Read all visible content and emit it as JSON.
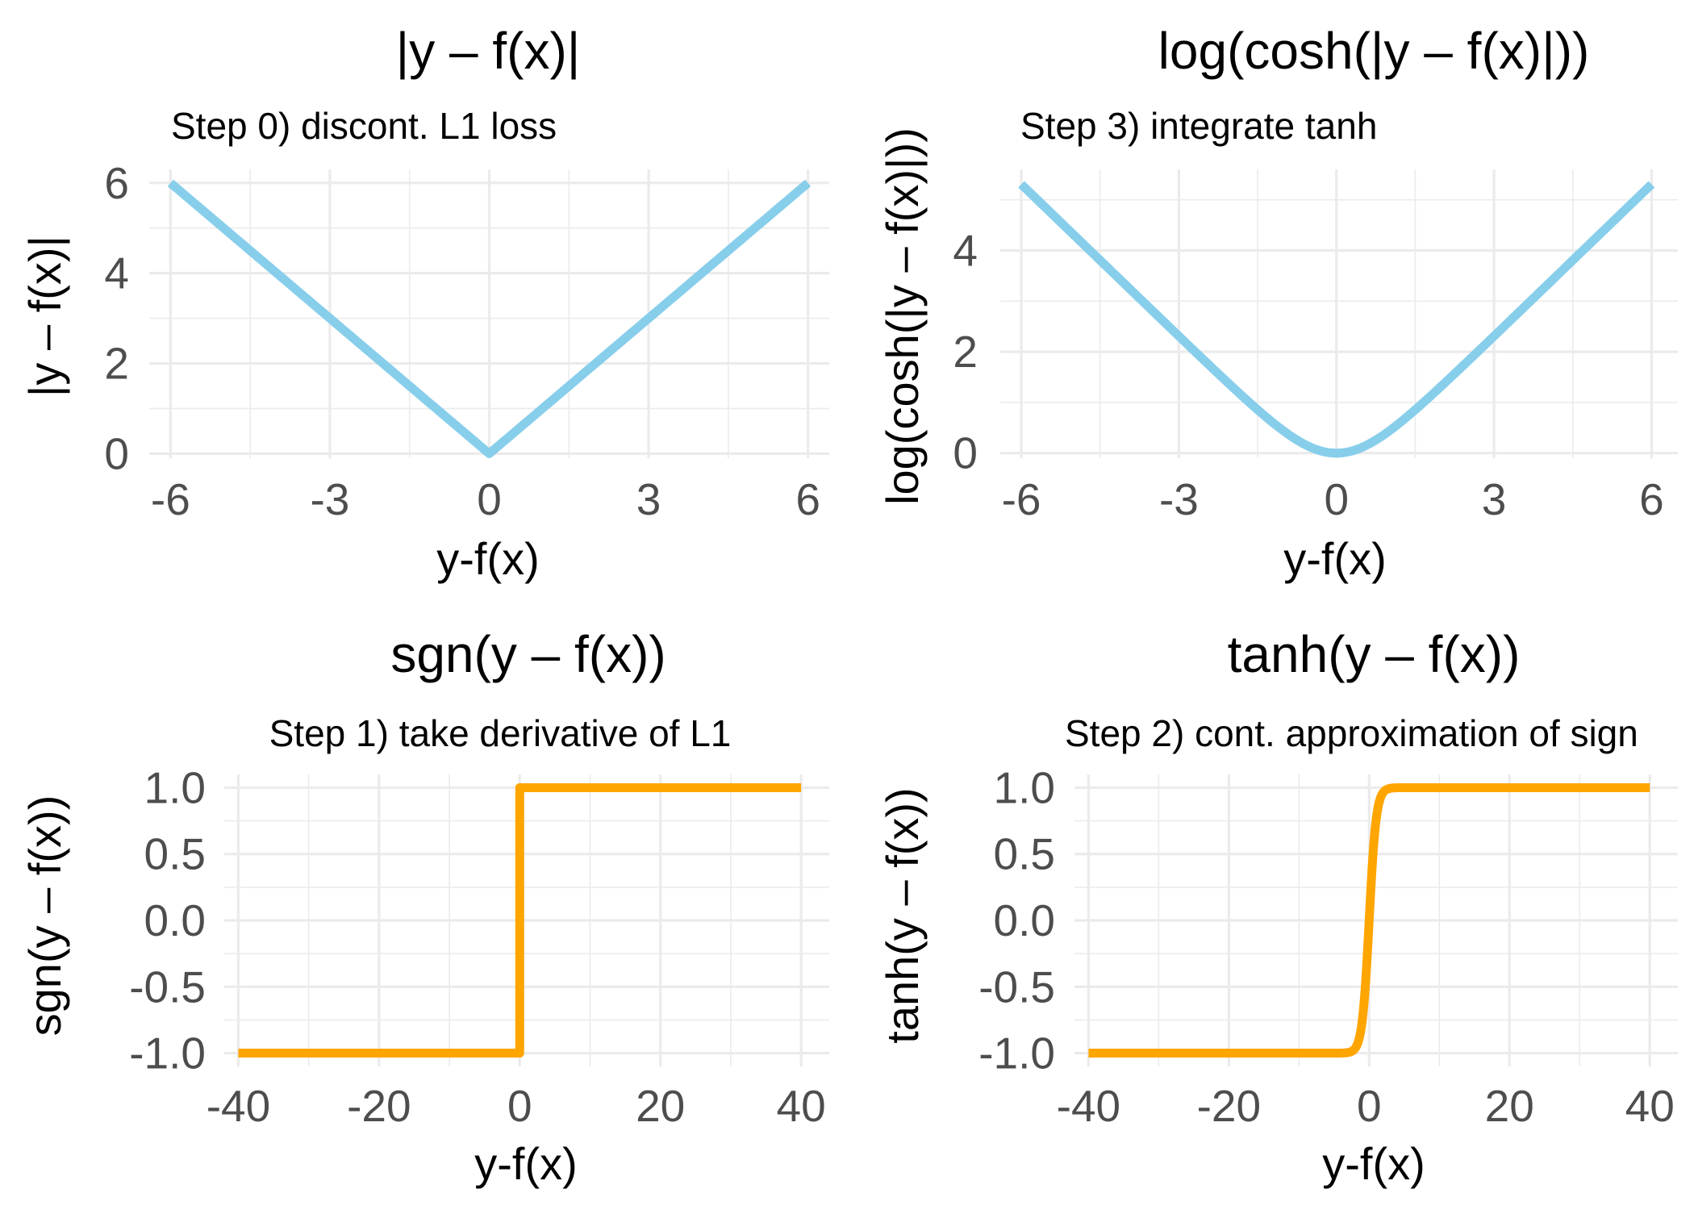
{
  "chart_data": [
    {
      "type": "line",
      "title": "|y – f(x)|",
      "subtitle": "Step 0) discont. L1 loss",
      "xlabel": "y-f(x)",
      "ylabel": "|y – f(x)|",
      "xlim": [
        -6.4,
        6.4
      ],
      "ylim": [
        -0.1,
        6.3
      ],
      "x_ticks": [
        -6,
        -3,
        0,
        3,
        6
      ],
      "x_tick_labels": [
        "-6",
        "-3",
        "0",
        "3",
        "6"
      ],
      "y_ticks": [
        0,
        2,
        4,
        6
      ],
      "y_tick_labels": [
        "0",
        "2",
        "4",
        "6"
      ],
      "grid": true,
      "function": "abs",
      "x": [
        -6,
        0,
        6
      ],
      "series": [
        {
          "values": [
            6,
            0,
            6
          ],
          "color": "#87ceeb"
        }
      ]
    },
    {
      "type": "line",
      "title": "log(cosh(|y – f(x)|))",
      "subtitle": "Step 3) integrate tanh",
      "xlabel": "y-f(x)",
      "ylabel": "log(cosh(|y – f(x)|))",
      "xlim": [
        -6.4,
        6.5
      ],
      "ylim": [
        -0.1,
        5.6
      ],
      "x_ticks": [
        -6,
        -3,
        0,
        3,
        6
      ],
      "x_tick_labels": [
        "-6",
        "-3",
        "0",
        "3",
        "6"
      ],
      "y_ticks": [
        0,
        2,
        4
      ],
      "y_tick_labels": [
        "0",
        "2",
        "4"
      ],
      "grid": true,
      "function": "logcosh",
      "x": [
        -6,
        -4,
        -2,
        -1,
        0,
        1,
        2,
        4,
        6
      ],
      "series": [
        {
          "values": [
            5.31,
            3.31,
            1.33,
            0.43,
            0,
            0.43,
            1.33,
            3.31,
            5.31
          ],
          "color": "#87ceeb"
        }
      ]
    },
    {
      "type": "line",
      "title": "sgn(y – f(x))",
      "subtitle": "Step 1) take derivative of L1",
      "xlabel": "y-f(x)",
      "ylabel": "sgn(y – f(x))",
      "xlim": [
        -42,
        44
      ],
      "ylim": [
        -1.1,
        1.1
      ],
      "x_ticks": [
        -40,
        -20,
        0,
        20,
        40
      ],
      "x_tick_labels": [
        "-40",
        "-20",
        "0",
        "20",
        "40"
      ],
      "y_ticks": [
        -1.0,
        -0.5,
        0.0,
        0.5,
        1.0
      ],
      "y_tick_labels": [
        "-1.0",
        "-0.5",
        "0.0",
        "0.5",
        "1.0"
      ],
      "grid": true,
      "function": "sign",
      "x": [
        -40,
        0,
        0,
        40
      ],
      "series": [
        {
          "values": [
            -1,
            -1,
            1,
            1
          ],
          "color": "#ffa500"
        }
      ]
    },
    {
      "type": "line",
      "title": "tanh(y – f(x))",
      "subtitle": "Step 2) cont. approximation of sign",
      "xlabel": "y-f(x)",
      "ylabel": "tanh(y – f(x))",
      "xlim": [
        -42,
        44
      ],
      "ylim": [
        -1.1,
        1.1
      ],
      "x_ticks": [
        -40,
        -20,
        0,
        20,
        40
      ],
      "x_tick_labels": [
        "-40",
        "-20",
        "0",
        "20",
        "40"
      ],
      "y_ticks": [
        -1.0,
        -0.5,
        0.0,
        0.5,
        1.0
      ],
      "y_tick_labels": [
        "-1.0",
        "-0.5",
        "0.0",
        "0.5",
        "1.0"
      ],
      "grid": true,
      "function": "tanh",
      "x": [
        -40,
        -3,
        -1,
        0,
        1,
        3,
        40
      ],
      "series": [
        {
          "values": [
            -1,
            -0.995,
            -0.762,
            0,
            0.762,
            0.995,
            1
          ],
          "color": "#ffa500"
        }
      ]
    }
  ]
}
